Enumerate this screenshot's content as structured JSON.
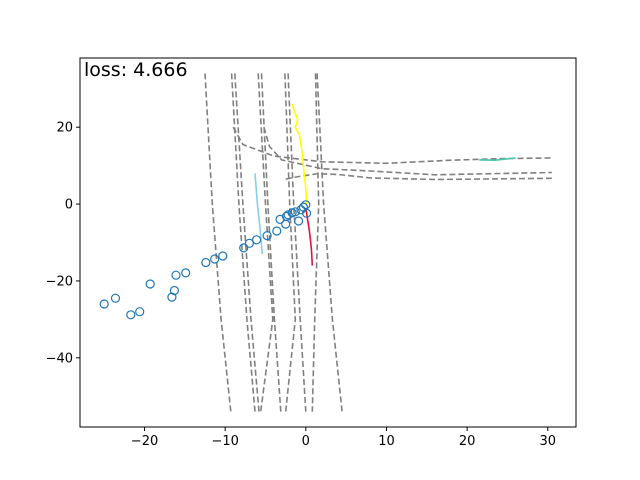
{
  "chart_data": {
    "type": "scatter",
    "title": "",
    "xlabel": "",
    "ylabel": "",
    "xlim": [
      -28,
      33.5
    ],
    "ylim": [
      -58,
      38
    ],
    "xticks": [
      -20,
      -10,
      0,
      10,
      20,
      30
    ],
    "yticks": [
      -40,
      -20,
      0,
      20
    ],
    "grid": false,
    "legend": "none",
    "annotation": {
      "text": "loss: 4.666",
      "position": "top-left"
    },
    "colors": {
      "lane": "#808080",
      "points": "#1f77b4",
      "track_yellow": "#ffff00",
      "track_red": "#dc143c",
      "track_lightblue": "#87ceeb",
      "track_teal": "#48c9b0"
    },
    "dashed_lines": [
      {
        "x": [
          -12.5,
          -11.6,
          -10.5,
          -9.3
        ],
        "y": [
          34,
          0,
          -30,
          -54
        ]
      },
      {
        "x": [
          -9.2,
          -8.3,
          -7.3,
          -6.3
        ],
        "y": [
          34,
          0,
          -30,
          -54
        ]
      },
      {
        "x": [
          -8.8,
          -7.8,
          -6.8,
          -5.8
        ],
        "y": [
          34,
          0,
          -30,
          -54
        ]
      },
      {
        "x": [
          -5.9,
          -5,
          -4.1,
          -5.6
        ],
        "y": [
          34,
          0,
          -30,
          -54
        ]
      },
      {
        "x": [
          -5.5,
          -4.7,
          -3.9,
          -3.1
        ],
        "y": [
          34,
          0,
          -30,
          -54
        ]
      },
      {
        "x": [
          -2.6,
          -2,
          -1.3,
          -2.5
        ],
        "y": [
          34,
          0,
          -30,
          -54
        ]
      },
      {
        "x": [
          -2.2,
          -1.5,
          -0.7,
          0
        ],
        "y": [
          34,
          0,
          -30,
          -54
        ]
      },
      {
        "x": [
          1.2,
          1.6,
          1.1,
          0.8
        ],
        "y": [
          34,
          0,
          -30,
          -54
        ]
      },
      {
        "x": [
          1.4,
          2.2,
          3.3,
          4.5
        ],
        "y": [
          34,
          0,
          -30,
          -54
        ]
      },
      {
        "x": [
          -9,
          -7.8,
          -4,
          2,
          10,
          18,
          24,
          30.5
        ],
        "y": [
          20,
          15.5,
          12.5,
          11,
          10.6,
          11.4,
          11.8,
          12
        ]
      },
      {
        "x": [
          -5.2,
          -4.5,
          -3,
          2,
          8,
          16,
          30.5
        ],
        "y": [
          20,
          15,
          11.5,
          9.2,
          8.6,
          7.6,
          8.2
        ]
      },
      {
        "x": [
          -2.5,
          -0.8,
          1.5,
          4,
          8,
          16,
          30.5
        ],
        "y": [
          6.5,
          7.2,
          7.9,
          7.7,
          6.8,
          6.4,
          6.7
        ]
      }
    ],
    "tracks": [
      {
        "color": "yellow",
        "x": [
          -1.7,
          -1.4,
          -1.0,
          -1.3,
          -0.8,
          -0.5,
          -0.3,
          0.0,
          0.1
        ],
        "y": [
          26,
          24,
          22,
          20,
          18,
          14,
          10,
          4,
          0
        ]
      },
      {
        "color": "red",
        "x": [
          0.0,
          0.3,
          0.5,
          0.7,
          0.8
        ],
        "y": [
          -1,
          -5,
          -8,
          -12,
          -16
        ]
      },
      {
        "color": "lightblue",
        "x": [
          -6.3,
          -6.0,
          -5.7,
          -5.4
        ],
        "y": [
          8,
          0,
          -6,
          -13
        ]
      },
      {
        "color": "teal",
        "x": [
          21.5,
          23.5,
          26
        ],
        "y": [
          11.5,
          11.4,
          12
        ]
      }
    ],
    "points": {
      "x": [
        -25.0,
        -23.6,
        -21.7,
        -20.6,
        -19.3,
        -16.3,
        -16.6,
        -16.1,
        -14.9,
        -12.4,
        -11.3,
        -10.3,
        -7.7,
        -7.0,
        -6.1,
        -4.8,
        -3.6,
        -3.2,
        -2.4,
        -2.2,
        -1.7,
        -1.3,
        -0.6,
        -0.3,
        0.0,
        0.1,
        -2.5,
        -0.9
      ],
      "y": [
        -26.0,
        -24.5,
        -28.8,
        -28.0,
        -20.8,
        -22.5,
        -24.2,
        -18.5,
        -17.9,
        -15.2,
        -14.3,
        -13.5,
        -11.4,
        -10.2,
        -9.3,
        -8.2,
        -7.0,
        -4.0,
        -3.2,
        -2.8,
        -2.3,
        -2.0,
        -1.5,
        -0.8,
        -0.2,
        -2.4,
        -5.2,
        -4.4
      ]
    }
  }
}
